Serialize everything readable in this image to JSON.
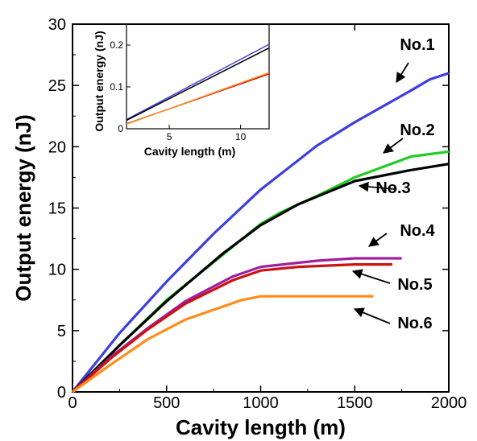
{
  "chart_data": {
    "type": "line",
    "title": "",
    "xlabel": "Cavity length (m)",
    "ylabel": "Output energy (nJ)",
    "xlim": [
      0,
      2000
    ],
    "ylim": [
      0,
      30
    ],
    "xticks": [
      0,
      500,
      1000,
      1500,
      2000
    ],
    "yticks": [
      0,
      5,
      10,
      15,
      20,
      25,
      30
    ],
    "grid": false,
    "legend": "none",
    "series": [
      {
        "name": "No.1",
        "color": "#3b3fe0",
        "x": [
          0,
          250,
          500,
          750,
          1000,
          1300,
          1500,
          1800,
          1900,
          2000
        ],
        "y": [
          0,
          4.8,
          9.0,
          12.9,
          16.5,
          20.1,
          22.0,
          24.6,
          25.5,
          26.0
        ]
      },
      {
        "name": "No.2",
        "color": "#22cc22",
        "x": [
          0,
          250,
          500,
          800,
          1000,
          1100,
          1300,
          1500,
          1800,
          2000
        ],
        "y": [
          0,
          3.8,
          7.5,
          11.2,
          13.7,
          14.6,
          16.0,
          17.5,
          19.2,
          19.6
        ]
      },
      {
        "name": "No.3",
        "color": "#000000",
        "x": [
          0,
          250,
          500,
          800,
          1000,
          1200,
          1500,
          1800,
          2000
        ],
        "y": [
          0,
          3.8,
          7.4,
          11.3,
          13.6,
          15.3,
          17.2,
          18.1,
          18.6
        ]
      },
      {
        "name": "No.4",
        "color": "#a020a0",
        "x": [
          0,
          200,
          400,
          600,
          850,
          1000,
          1300,
          1500,
          1750
        ],
        "y": [
          0,
          2.8,
          5.2,
          7.4,
          9.4,
          10.2,
          10.7,
          10.9,
          10.9
        ]
      },
      {
        "name": "No.5",
        "color": "#cc1111",
        "x": [
          0,
          200,
          400,
          600,
          850,
          1000,
          1200,
          1500,
          1700
        ],
        "y": [
          0,
          2.7,
          5.1,
          7.2,
          9.1,
          9.9,
          10.2,
          10.4,
          10.4
        ]
      },
      {
        "name": "No.6",
        "color": "#ff8c1a",
        "x": [
          0,
          200,
          400,
          600,
          900,
          1000,
          1200,
          1400,
          1600
        ],
        "y": [
          0,
          2.2,
          4.3,
          5.9,
          7.5,
          7.8,
          7.8,
          7.8,
          7.8
        ]
      }
    ],
    "annotations": [
      {
        "text": "No.1",
        "series": 0
      },
      {
        "text": "No.2",
        "series": 1
      },
      {
        "text": "No.3",
        "series": 2
      },
      {
        "text": "No.4",
        "series": 3
      },
      {
        "text": "No.5",
        "series": 4
      },
      {
        "text": "No.6",
        "series": 5
      }
    ],
    "inset": {
      "xlabel": "Cavity length (m)",
      "ylabel": "Output energy (nJ)",
      "xlim": [
        2,
        12
      ],
      "ylim": [
        0,
        0.25
      ],
      "xticks": [
        5,
        10
      ],
      "yticks": [
        0,
        0.1,
        0.2
      ],
      "series": [
        {
          "color": "#3b3fe0",
          "x": [
            2,
            12
          ],
          "y": [
            0.022,
            0.202
          ]
        },
        {
          "color": "#000000",
          "x": [
            2,
            12
          ],
          "y": [
            0.02,
            0.193
          ]
        },
        {
          "color": "#cc1111",
          "x": [
            2,
            12
          ],
          "y": [
            0.012,
            0.131
          ]
        },
        {
          "color": "#ff8c1a",
          "x": [
            2,
            12
          ],
          "y": [
            0.011,
            0.134
          ]
        }
      ]
    }
  }
}
